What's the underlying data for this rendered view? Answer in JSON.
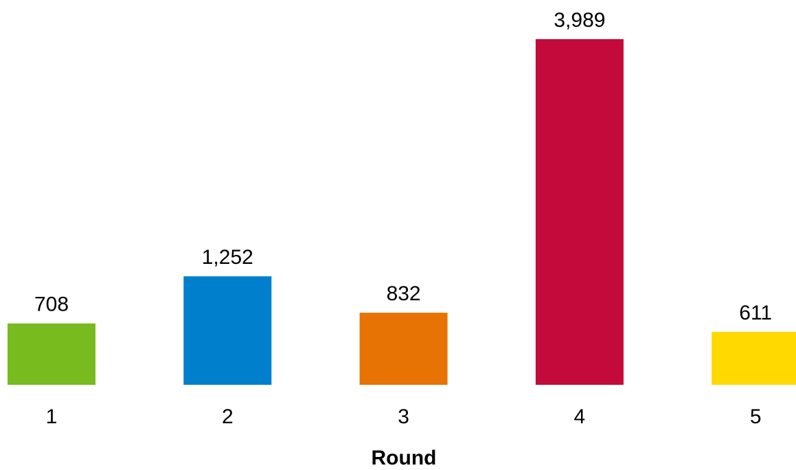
{
  "chart_data": {
    "type": "bar",
    "x_label": "Round",
    "categories": [
      "1",
      "2",
      "3",
      "4",
      "5"
    ],
    "values": [
      708,
      1252,
      832,
      3989,
      611
    ],
    "value_labels": [
      "708",
      "1,252",
      "832",
      "3,989",
      "611"
    ],
    "colors": [
      "#77bb1f",
      "#0080cc",
      "#e87305",
      "#c30a3a",
      "#ffd900"
    ]
  }
}
